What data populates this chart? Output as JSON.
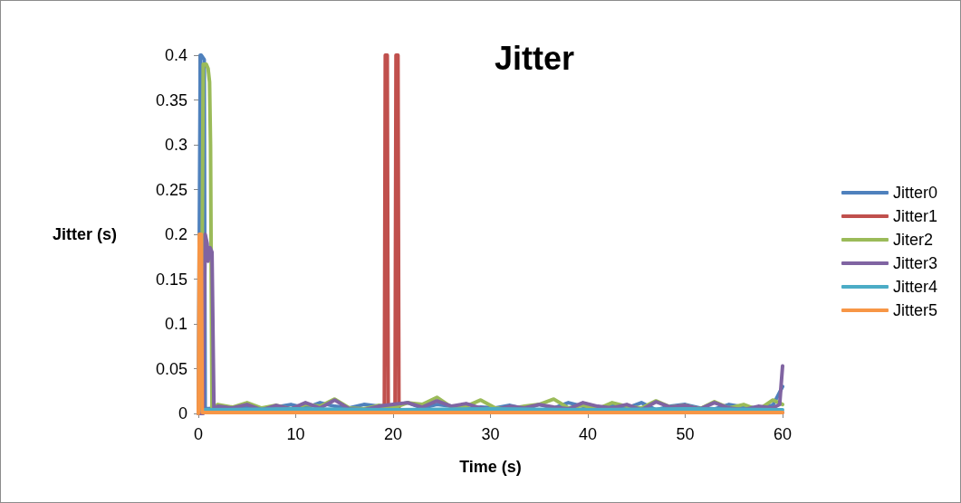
{
  "chart_data": {
    "type": "line",
    "title": "Jitter",
    "xlabel": "Time (s)",
    "ylabel": "Jitter (s)",
    "xlim": [
      0,
      60
    ],
    "xticks": [
      0,
      10,
      20,
      30,
      40,
      50,
      60
    ],
    "ylim": [
      0,
      0.4
    ],
    "yticks": [
      0,
      0.05,
      0.1,
      0.15,
      0.2,
      0.25,
      0.3,
      0.35,
      0.4
    ],
    "grid": false,
    "legend": "right",
    "marker": "none",
    "line_style": "solid",
    "series": [
      {
        "name": "Jitter0",
        "color": "#4f81bd",
        "x": [
          0,
          0.2,
          0.3,
          0.6,
          0.7,
          2,
          3.5,
          5,
          6.5,
          8,
          9.5,
          11,
          12.5,
          14,
          15.5,
          17,
          18.5,
          20,
          21.5,
          23,
          24.5,
          26,
          27.5,
          29,
          30.5,
          32,
          33.5,
          35,
          36.5,
          38,
          39.5,
          41,
          42.5,
          44,
          45.5,
          47,
          48.5,
          50,
          51.5,
          53,
          54.5,
          56,
          57.5,
          59,
          60
        ],
        "values": [
          0,
          0.4,
          0.4,
          0.395,
          0.005,
          0.006,
          0.005,
          0.008,
          0.004,
          0.007,
          0.01,
          0.006,
          0.012,
          0.008,
          0.006,
          0.01,
          0.008,
          0.009,
          0.012,
          0.006,
          0.01,
          0.008,
          0.005,
          0.007,
          0.006,
          0.009,
          0.005,
          0.01,
          0.006,
          0.012,
          0.008,
          0.005,
          0.01,
          0.006,
          0.012,
          0.004,
          0.008,
          0.01,
          0.006,
          0.005,
          0.01,
          0.007,
          0.006,
          0.009,
          0.03
        ]
      },
      {
        "name": "Jitter1",
        "color": "#c0504d",
        "x": [
          0,
          19.1,
          19.2,
          19.4,
          19.5,
          20.2,
          20.3,
          20.5,
          20.6,
          30,
          40,
          50,
          60
        ],
        "values": [
          0.001,
          0.001,
          0.4,
          0.4,
          0.002,
          0.002,
          0.4,
          0.4,
          0.001,
          0.001,
          0.001,
          0.001,
          0.001
        ]
      },
      {
        "name": "Jiter2",
        "color": "#9bbb59",
        "x": [
          0,
          0.3,
          0.5,
          0.8,
          1.0,
          1.15,
          1.25,
          1.4,
          2,
          3.5,
          5,
          6.5,
          8,
          9.5,
          11,
          12.5,
          14,
          15.5,
          17,
          18.5,
          20,
          21.5,
          23,
          24.5,
          26,
          27.5,
          29,
          30.5,
          32,
          33.5,
          35,
          36.5,
          38,
          39.5,
          41,
          42.5,
          44,
          45.5,
          47,
          48.5,
          50,
          51.5,
          53,
          54.5,
          56,
          57.5,
          59,
          60
        ],
        "values": [
          0,
          0.005,
          0.39,
          0.39,
          0.385,
          0.37,
          0.3,
          0.005,
          0.01,
          0.007,
          0.012,
          0.006,
          0.009,
          0.005,
          0.01,
          0.008,
          0.016,
          0.006,
          0.005,
          0.009,
          0.006,
          0.012,
          0.01,
          0.018,
          0.007,
          0.008,
          0.015,
          0.006,
          0.005,
          0.008,
          0.01,
          0.016,
          0.006,
          0.009,
          0.005,
          0.012,
          0.008,
          0.006,
          0.014,
          0.007,
          0.009,
          0.005,
          0.013,
          0.006,
          0.01,
          0.004,
          0.015,
          0.01
        ]
      },
      {
        "name": "Jitter3",
        "color": "#8064a2",
        "x": [
          0,
          0.5,
          0.7,
          0.9,
          1.0,
          1.2,
          1.4,
          1.6,
          2,
          3.5,
          5,
          6.5,
          8,
          9.5,
          11,
          12.5,
          14,
          15.5,
          17,
          18.5,
          20,
          21.5,
          23,
          24.5,
          26,
          27.5,
          29,
          30.5,
          32,
          33.5,
          35,
          36.5,
          38,
          39.5,
          41,
          42.5,
          44,
          45.5,
          47,
          48.5,
          50,
          51.5,
          53,
          54.5,
          56,
          57.5,
          59,
          59.7,
          60
        ],
        "values": [
          0,
          0,
          0.2,
          0.19,
          0.17,
          0.185,
          0.18,
          0.005,
          0.008,
          0.006,
          0.01,
          0.004,
          0.009,
          0.005,
          0.012,
          0.006,
          0.015,
          0.005,
          0.004,
          0.008,
          0.01,
          0.012,
          0.007,
          0.014,
          0.008,
          0.011,
          0.006,
          0.004,
          0.008,
          0.006,
          0.01,
          0.007,
          0.005,
          0.012,
          0.008,
          0.006,
          0.01,
          0.004,
          0.013,
          0.007,
          0.009,
          0.005,
          0.012,
          0.006,
          0.004,
          0.008,
          0.006,
          0.01,
          0.053
        ]
      },
      {
        "name": "Jitter4",
        "color": "#4bacc6",
        "x": [
          0,
          10,
          20,
          30,
          40,
          50,
          60
        ],
        "values": [
          0.004,
          0.005,
          0.004,
          0.005,
          0.004,
          0.005,
          0.004
        ]
      },
      {
        "name": "Jitter5",
        "color": "#f79646",
        "x": [
          0,
          0.1,
          0.3,
          0.4,
          2,
          10,
          20,
          30,
          40,
          50,
          60
        ],
        "values": [
          0,
          0.2,
          0.2,
          0.001,
          0.001,
          0.001,
          0.001,
          0.001,
          0.001,
          0.001,
          0.001
        ]
      }
    ]
  }
}
